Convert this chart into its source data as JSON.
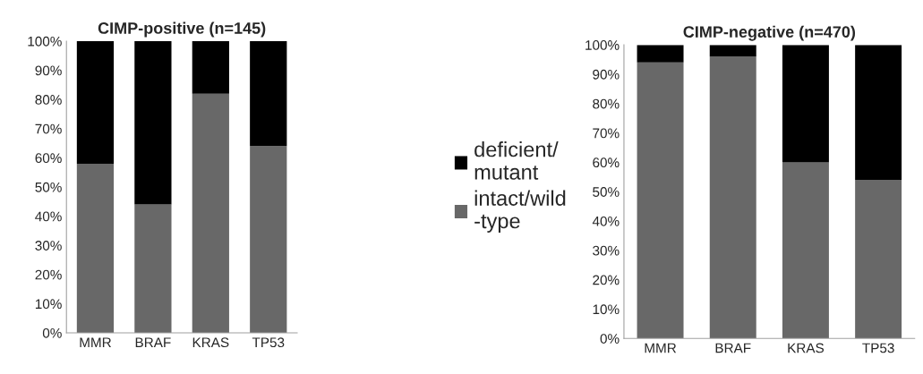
{
  "chart_data": [
    {
      "type": "bar",
      "title": "CIMP-positive (n=145)",
      "categories": [
        "MMR",
        "BRAF",
        "KRAS",
        "TP53"
      ],
      "stacked": true,
      "ylim": [
        0,
        100
      ],
      "yticks": [
        {
          "value": 0,
          "label": "0%"
        },
        {
          "value": 10,
          "label": "10%"
        },
        {
          "value": 20,
          "label": "20%"
        },
        {
          "value": 30,
          "label": "30%"
        },
        {
          "value": 40,
          "label": "40%"
        },
        {
          "value": 50,
          "label": "50%"
        },
        {
          "value": 60,
          "label": "60%"
        },
        {
          "value": 70,
          "label": "70%"
        },
        {
          "value": 80,
          "label": "80%"
        },
        {
          "value": 90,
          "label": "90%"
        },
        {
          "value": 100,
          "label": "100%"
        }
      ],
      "legend": "right",
      "series": [
        {
          "name": "intact/wild\n-type",
          "color": "#686868",
          "values": [
            58,
            44,
            82,
            64
          ]
        },
        {
          "name": "deficient/\nmutant",
          "color": "#000000",
          "values": [
            42,
            56,
            18,
            36
          ]
        }
      ]
    },
    {
      "type": "bar",
      "title": "CIMP-negative (n=470)",
      "categories": [
        "MMR",
        "BRAF",
        "KRAS",
        "TP53"
      ],
      "stacked": true,
      "ylim": [
        0,
        100
      ],
      "yticks": [
        {
          "value": 0,
          "label": "0%"
        },
        {
          "value": 10,
          "label": "10%"
        },
        {
          "value": 20,
          "label": "20%"
        },
        {
          "value": 30,
          "label": "30%"
        },
        {
          "value": 40,
          "label": "40%"
        },
        {
          "value": 50,
          "label": "50%"
        },
        {
          "value": 60,
          "label": "60%"
        },
        {
          "value": 70,
          "label": "70%"
        },
        {
          "value": 80,
          "label": "80%"
        },
        {
          "value": 90,
          "label": "90%"
        },
        {
          "value": 100,
          "label": "100%"
        }
      ],
      "series": [
        {
          "color": "#686868",
          "values": [
            94,
            96,
            60,
            54
          ]
        },
        {
          "color": "#000000",
          "values": [
            6,
            4,
            40,
            46
          ]
        }
      ]
    }
  ]
}
